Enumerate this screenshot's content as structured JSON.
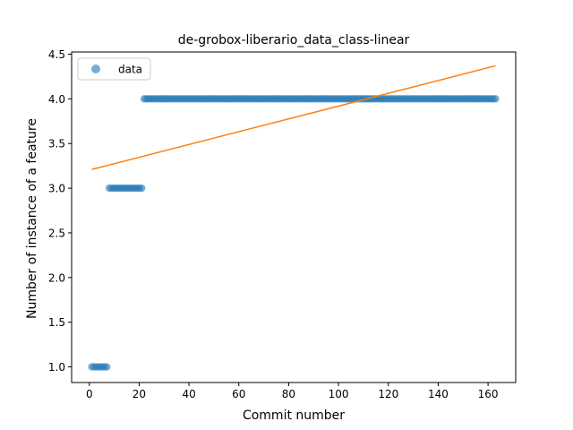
{
  "chart_data": {
    "type": "scatter",
    "title": "de-grobox-liberario_data_class-linear",
    "xlabel": "Commit number",
    "ylabel": "Number of instance of a feature",
    "xlim": [
      -7.1,
      171.1
    ],
    "ylim": [
      0.825,
      4.525
    ],
    "xticks": [
      0,
      20,
      40,
      60,
      80,
      100,
      120,
      140,
      160
    ],
    "yticks": [
      1.0,
      1.5,
      2.0,
      2.5,
      3.0,
      3.5,
      4.0,
      4.5
    ],
    "xtick_labels": [
      "0",
      "20",
      "40",
      "60",
      "80",
      "100",
      "120",
      "140",
      "160"
    ],
    "ytick_labels": [
      "1.0",
      "1.5",
      "2.0",
      "2.5",
      "3.0",
      "3.5",
      "4.0",
      "4.5"
    ],
    "grid": false,
    "legend": {
      "placement": "top-left",
      "entries": [
        "data"
      ]
    },
    "series": [
      {
        "name": "data",
        "marker": "circle",
        "color": "#1f77b4",
        "alpha": 0.6,
        "segments": [
          {
            "x_from": 1,
            "x_to": 7,
            "y": 1.0
          },
          {
            "x_from": 8,
            "x_to": 21,
            "y": 3.0
          },
          {
            "x_from": 22,
            "x_to": 163,
            "y": 4.0
          }
        ]
      },
      {
        "name": "",
        "kind": "fit-line",
        "color": "#ff7f0e",
        "x": [
          1,
          163
        ],
        "y": [
          3.21,
          4.37
        ]
      }
    ]
  }
}
